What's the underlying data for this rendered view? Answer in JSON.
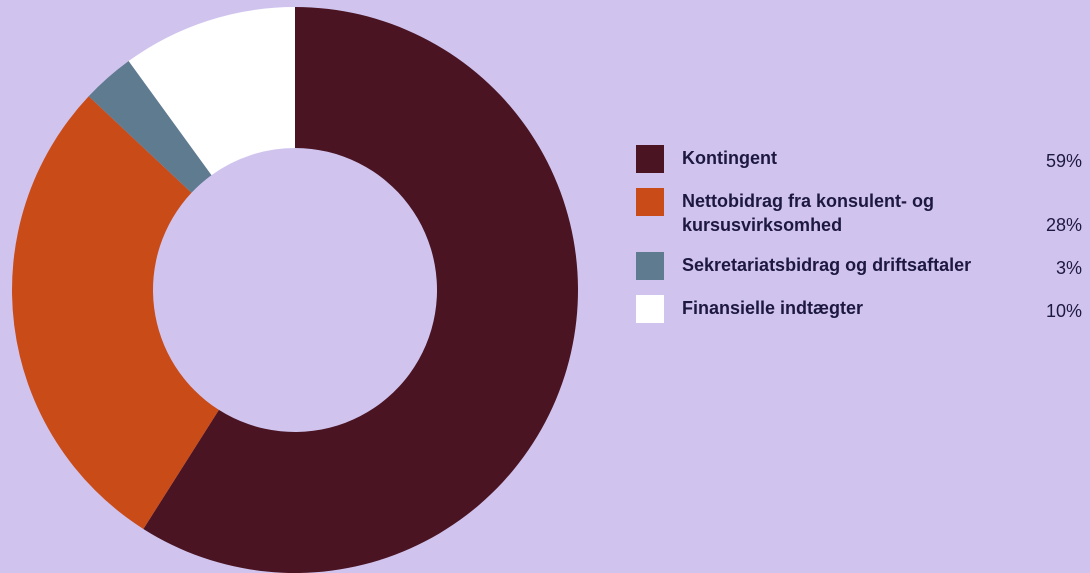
{
  "chart_data": {
    "type": "donut",
    "categories": [
      "Kontingent",
      "Nettobidrag fra konsulent- og kursusvirksomhed",
      "Sekretariatsbidrag og driftsaftaler",
      "Finansielle indtægter"
    ],
    "values": [
      59,
      28,
      3,
      10
    ],
    "value_labels": [
      "59%",
      "28%",
      "3%",
      "10%"
    ],
    "colors": [
      "#4a1422",
      "#c94b18",
      "#5f7b8f",
      "#ffffff"
    ]
  }
}
